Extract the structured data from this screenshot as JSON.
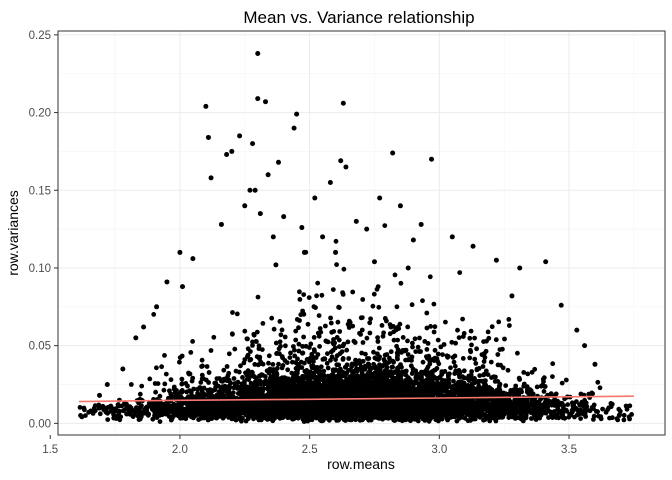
{
  "chart_data": {
    "type": "scatter",
    "title": "Mean vs. Variance relationship",
    "xlabel": "row.means",
    "ylabel": "row.variances",
    "xlim": [
      1.53,
      3.87
    ],
    "ylim": [
      -0.0075,
      0.2525
    ],
    "x_ticks": [
      1.5,
      2.0,
      2.5,
      3.0,
      3.5
    ],
    "x_tick_labels": [
      "1.5",
      "2.0",
      "2.5",
      "3.0",
      "3.5"
    ],
    "y_ticks": [
      0.0,
      0.05,
      0.1,
      0.15,
      0.2,
      0.25
    ],
    "y_tick_labels": [
      "0.00",
      "0.05",
      "0.10",
      "0.15",
      "0.20",
      "0.25"
    ],
    "grid": true,
    "point_color": "#000000",
    "trend_color": "#f8766d",
    "series": [
      {
        "kind": "points",
        "x": [
          2.3,
          2.3,
          2.33,
          2.45,
          2.63,
          2.1,
          2.44,
          2.28,
          2.82,
          2.97,
          2.11,
          2.23,
          2.2,
          2.18,
          2.27,
          2.38,
          2.62,
          2.64,
          2.58,
          2.29,
          2.34,
          2.77,
          2.52,
          2.12,
          2.25,
          2.31,
          2.4,
          2.68,
          2.85,
          2.93,
          2.47,
          2.72,
          3.05,
          2.55,
          2.9,
          2.16,
          2.36,
          2.6,
          2.48,
          2.75,
          3.13,
          2.0,
          2.05,
          2.37,
          2.88,
          3.22,
          3.31,
          1.95,
          2.01,
          3.28,
          1.91,
          1.86,
          1.83,
          3.41,
          3.47,
          3.53,
          3.56,
          3.6,
          1.78,
          1.72,
          1.69
        ],
        "y": [
          0.238,
          0.209,
          0.207,
          0.199,
          0.206,
          0.204,
          0.19,
          0.18,
          0.174,
          0.17,
          0.184,
          0.185,
          0.175,
          0.173,
          0.15,
          0.168,
          0.169,
          0.165,
          0.155,
          0.15,
          0.16,
          0.145,
          0.145,
          0.158,
          0.14,
          0.135,
          0.133,
          0.13,
          0.14,
          0.128,
          0.126,
          0.125,
          0.12,
          0.12,
          0.118,
          0.128,
          0.12,
          0.11,
          0.11,
          0.104,
          0.114,
          0.11,
          0.106,
          0.102,
          0.1,
          0.105,
          0.1,
          0.091,
          0.088,
          0.082,
          0.075,
          0.062,
          0.055,
          0.104,
          0.076,
          0.06,
          0.05,
          0.038,
          0.035,
          0.025,
          0.018
        ]
      },
      {
        "kind": "trend",
        "x": [
          1.61,
          2.0,
          2.5,
          3.0,
          3.5,
          3.75
        ],
        "y": [
          0.014,
          0.0148,
          0.0155,
          0.0163,
          0.0171,
          0.0175
        ]
      }
    ]
  }
}
